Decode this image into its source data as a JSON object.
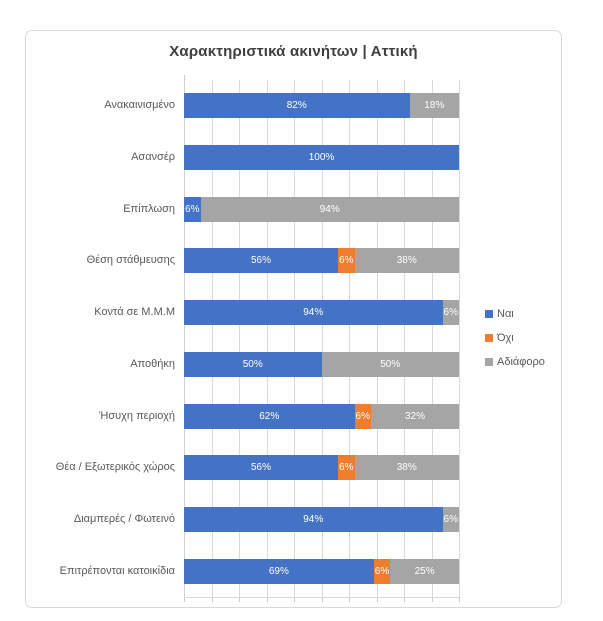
{
  "chart_data": {
    "type": "bar",
    "orientation": "horizontal",
    "stacked": true,
    "title": "Χαρακτηριστικά ακινήτων | Αττική",
    "categories": [
      "Ανακαινισμένο",
      "Ασανσέρ",
      "Επίπλωση",
      "Θέση στάθμευσης",
      "Κοντά σε Μ.Μ.Μ",
      "Αποθήκη",
      "Ήσυχη περιοχή",
      "Θέα / Εξωτερικός χώρος",
      "Διαμπερές / Φωτεινό",
      "Επιτρέπονται κατοικίδια"
    ],
    "series": [
      {
        "name": "Ναι",
        "color": "#4472C4",
        "values": [
          82,
          100,
          6,
          56,
          94,
          50,
          62,
          56,
          94,
          69
        ]
      },
      {
        "name": "Όχι",
        "color": "#ED7D31",
        "values": [
          0,
          0,
          0,
          6,
          0,
          0,
          6,
          6,
          0,
          6
        ]
      },
      {
        "name": "Αδιάφορο",
        "color": "#A5A5A5",
        "values": [
          18,
          0,
          94,
          38,
          6,
          50,
          32,
          38,
          6,
          25
        ]
      }
    ],
    "data_label_suffix": "%",
    "xlim": [
      0,
      100
    ],
    "gridline_interval": 10,
    "grid": true,
    "legend_position": "right",
    "colors": {
      "gridline": "#D9D9D9",
      "border": "#D9D9D9",
      "title_text": "#3f3f3f",
      "axis_text": "#595959",
      "data_label_text": "#ffffff"
    }
  }
}
